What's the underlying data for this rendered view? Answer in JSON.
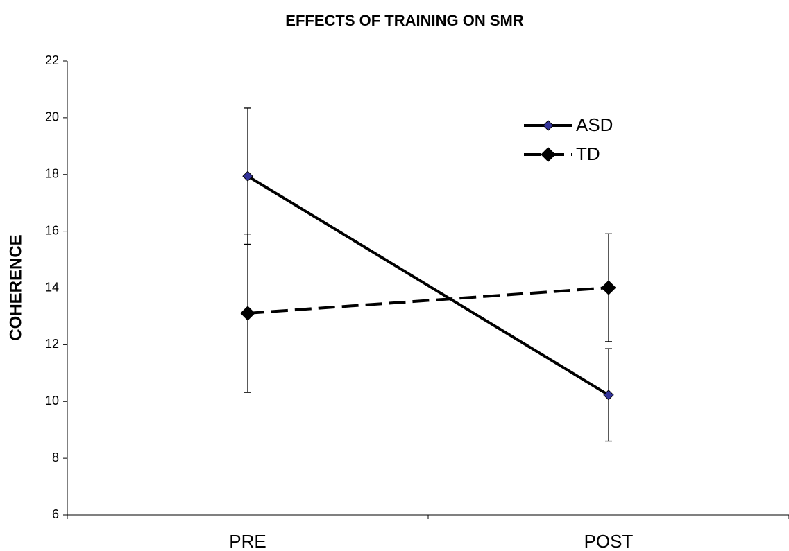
{
  "chart_data": {
    "type": "line",
    "title": "EFFECTS OF TRAINING ON SMR",
    "y_label": "COHERENCE",
    "categories": [
      "PRE",
      "POST"
    ],
    "series": [
      {
        "name": "ASD",
        "color": "#000000",
        "marker_color": "#333399",
        "dashed": false,
        "values": [
          17.94,
          10.23
        ],
        "errors": [
          2.4,
          1.63
        ]
      },
      {
        "name": "TD",
        "color": "#000000",
        "marker_color": "#000000",
        "dashed": true,
        "values": [
          13.11,
          14.01
        ],
        "errors": [
          2.79,
          1.9
        ]
      }
    ],
    "ylim": [
      6,
      22
    ],
    "yticks": [
      6,
      8,
      10,
      12,
      14,
      16,
      18,
      20,
      22
    ],
    "grid": false,
    "legend": "upper right"
  }
}
